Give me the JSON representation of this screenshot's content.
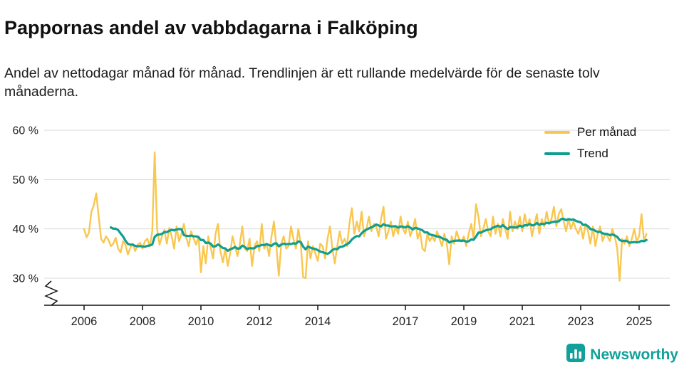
{
  "header": {
    "title": "Pappornas andel av vabbdagarna i Falköping",
    "subtitle": "Andel av nettodagar månad för månad. Trendlinjen är ett rullande medelvärde för de senaste tolv månaderna."
  },
  "legend": {
    "monthly_label": "Per månad",
    "trend_label": "Trend"
  },
  "footer": {
    "brand": "Newsworthy",
    "logo_icon": "bar-chart-icon"
  },
  "colors": {
    "monthly": "#F9C74F",
    "trend": "#119E8F",
    "brand": "#12A19A",
    "grid": "#D9D9D9",
    "axis": "#111111"
  },
  "chart_data": {
    "type": "line",
    "title": "Pappornas andel av vabbdagarna i Falköping",
    "subtitle": "Andel av nettodagar månad för månad. Trendlinjen är ett rullande medelvärde för de senaste tolv månaderna.",
    "x_unit": "month",
    "x_start": "2006-01",
    "x_end": "2025-04",
    "x_ticks": [
      2006,
      2008,
      2010,
      2012,
      2014,
      2017,
      2019,
      2021,
      2023,
      2025
    ],
    "y_ticks": [
      30,
      40,
      50,
      60
    ],
    "y_tick_suffix": " %",
    "ylim": [
      30,
      60
    ],
    "axis_break": true,
    "grid": "horizontal-only",
    "legend_position": "top-right",
    "series": [
      {
        "name": "Per månad",
        "values": [
          40.0,
          38.3,
          39.2,
          43.5,
          44.8,
          47.2,
          42.5,
          38.0,
          37.2,
          38.5,
          37.8,
          36.5,
          37.0,
          38.2,
          36.0,
          35.2,
          37.5,
          36.8,
          34.8,
          36.2,
          37.0,
          35.5,
          36.8,
          37.2,
          36.0,
          37.5,
          38.0,
          36.5,
          39.5,
          55.5,
          40.0,
          36.8,
          38.5,
          39.8,
          37.0,
          40.2,
          38.5,
          36.0,
          40.5,
          37.5,
          39.0,
          41.0,
          38.2,
          36.5,
          39.5,
          38.0,
          36.8,
          38.5,
          31.2,
          36.5,
          33.0,
          38.5,
          36.2,
          34.0,
          39.0,
          41.0,
          35.5,
          33.2,
          36.0,
          32.5,
          35.0,
          38.5,
          36.5,
          34.5,
          37.0,
          40.5,
          36.0,
          35.5,
          38.0,
          32.5,
          36.5,
          37.5,
          35.5,
          41.0,
          36.0,
          37.0,
          34.5,
          38.5,
          41.5,
          36.5,
          30.5,
          37.0,
          38.5,
          36.0,
          36.5,
          40.5,
          38.0,
          36.0,
          40.0,
          37.0,
          30.2,
          30.0,
          37.5,
          34.0,
          36.5,
          35.0,
          33.5,
          37.0,
          36.5,
          34.0,
          38.0,
          40.5,
          36.0,
          33.0,
          36.5,
          39.5,
          37.0,
          38.0,
          36.5,
          41.0,
          44.2,
          39.0,
          41.5,
          39.5,
          43.5,
          38.5,
          40.0,
          42.5,
          39.5,
          41.0,
          40.5,
          38.5,
          42.0,
          44.5,
          38.0,
          39.5,
          41.5,
          38.5,
          40.5,
          39.0,
          42.5,
          40.0,
          39.0,
          41.5,
          38.5,
          40.0,
          42.0,
          38.0,
          39.5,
          36.0,
          35.5,
          39.0,
          37.5,
          38.5,
          37.5,
          39.5,
          38.0,
          36.5,
          39.0,
          37.0,
          32.8,
          38.5,
          37.0,
          39.5,
          38.0,
          37.5,
          38.5,
          36.5,
          39.0,
          41.0,
          38.0,
          45.0,
          42.5,
          38.5,
          40.0,
          42.0,
          39.5,
          38.5,
          42.5,
          39.0,
          41.0,
          38.5,
          42.0,
          40.0,
          38.0,
          43.5,
          39.5,
          41.5,
          40.0,
          42.5,
          39.5,
          43.0,
          40.5,
          42.0,
          38.5,
          41.0,
          43.0,
          39.0,
          42.0,
          40.5,
          43.5,
          41.0,
          42.0,
          44.5,
          40.5,
          43.0,
          44.0,
          41.5,
          39.5,
          42.0,
          40.0,
          41.5,
          40.0,
          39.0,
          40.5,
          38.0,
          41.0,
          39.5,
          37.0,
          40.5,
          36.5,
          39.0,
          40.5,
          37.5,
          39.0,
          38.5,
          37.5,
          40.0,
          38.5,
          36.0,
          29.5,
          38.0,
          37.0,
          38.5,
          36.5,
          38.0,
          40.0,
          37.5,
          38.5,
          43.0,
          37.5,
          39.0
        ]
      },
      {
        "name": "Trend",
        "derivation": "rolling_mean_12_months"
      }
    ]
  }
}
